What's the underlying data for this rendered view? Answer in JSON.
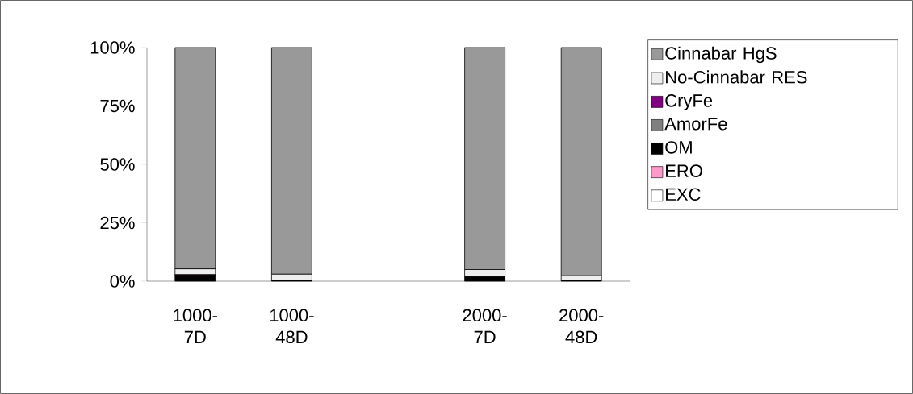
{
  "chart_data": {
    "type": "bar",
    "stacked": true,
    "categories": [
      "1000-7D",
      "1000-48D",
      null,
      "2000-7D",
      "2000-48D"
    ],
    "series": [
      {
        "name": "EXC",
        "color": "#ffffff",
        "values": [
          0,
          0,
          null,
          0,
          0
        ]
      },
      {
        "name": "ERO",
        "color": "#ff99cc",
        "values": [
          0,
          0,
          null,
          0,
          0
        ]
      },
      {
        "name": "OM",
        "color": "#000000",
        "values": [
          2.5,
          0.5,
          null,
          2,
          0.5
        ]
      },
      {
        "name": "AmorFe",
        "color": "#808080",
        "values": [
          0,
          0,
          null,
          0,
          0
        ]
      },
      {
        "name": "CryFe",
        "color": "#800080",
        "values": [
          0.3,
          0,
          null,
          0,
          0
        ]
      },
      {
        "name": "No-Cinnabar RES",
        "color": "#eeeeee",
        "values": [
          2.5,
          2.5,
          null,
          3,
          1.8
        ]
      },
      {
        "name": "Cinnabar HgS",
        "color": "#999999",
        "values": [
          94.7,
          97,
          null,
          95,
          97.7
        ]
      }
    ],
    "ylim": [
      0,
      100
    ],
    "yticks": [
      {
        "value": 0,
        "label": "0%"
      },
      {
        "value": 25,
        "label": "25%"
      },
      {
        "value": 50,
        "label": "50%"
      },
      {
        "value": 75,
        "label": "75%"
      },
      {
        "value": 100,
        "label": "100%"
      }
    ],
    "legend": "right"
  }
}
